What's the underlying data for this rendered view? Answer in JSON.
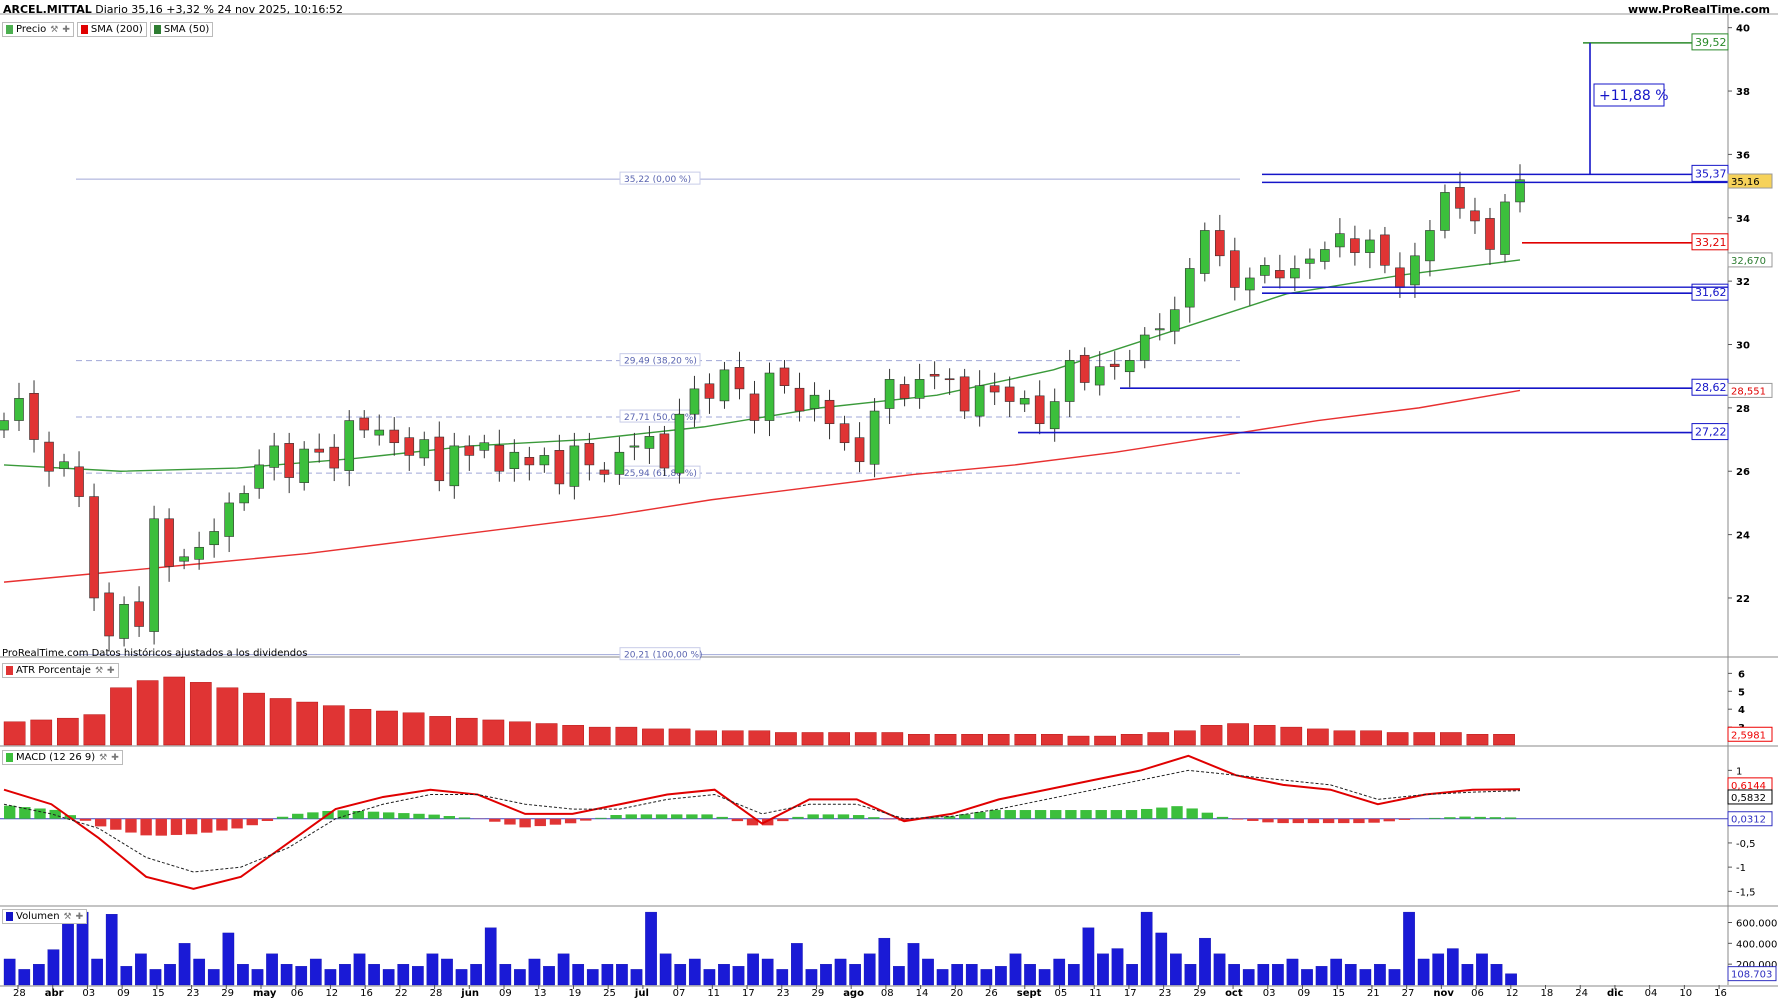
{
  "header": {
    "instrument": "ARCEL.MITTAL",
    "summary": "Diario 35,16 +3,32 % 24 nov 2025, 10:16:52",
    "site": "www.ProRealTime.com"
  },
  "legend": {
    "items": [
      {
        "label": "Precio",
        "color": "#4caf50"
      },
      {
        "label": "SMA (200)",
        "color": "#e00000"
      },
      {
        "label": "SMA (50)",
        "color": "#2e7d32"
      }
    ]
  },
  "footnote": "ProRealTime.com Datos históricos ajustados a los dividendos",
  "panels": {
    "atr": "ATR Porcentaje",
    "macd": "MACD (12 26 9)",
    "volume": "Volumen"
  },
  "colors": {
    "up": "#3cbf3c",
    "down": "#e03434",
    "sma200": "#e83030",
    "sma50": "#3a9a3a",
    "level": "#1515c8",
    "stop": "#e00000",
    "fib": "#a0a8d8"
  },
  "chart_data": [
    {
      "type": "candlestick",
      "title": "ARCEL.MITTAL Diario",
      "y_ticks": [
        22,
        24,
        26,
        28,
        30,
        32,
        34,
        36,
        38,
        40
      ],
      "ylim": [
        20.2,
        40.4
      ],
      "x_tick_labels": [
        "28",
        "abr",
        "03",
        "09",
        "15",
        "23",
        "29",
        "may",
        "06",
        "12",
        "16",
        "22",
        "28",
        "jun",
        "09",
        "13",
        "19",
        "25",
        "jul",
        "07",
        "11",
        "17",
        "23",
        "29",
        "ago",
        "08",
        "14",
        "20",
        "26",
        "sept",
        "05",
        "11",
        "17",
        "23",
        "29",
        "oct",
        "03",
        "09",
        "15",
        "21",
        "27",
        "nov",
        "06",
        "12",
        "18",
        "24",
        "dic",
        "04",
        "10",
        "16"
      ],
      "close_path": [
        27.6,
        28.3,
        27.0,
        26.0,
        26.3,
        25.2,
        22.0,
        20.8,
        21.8,
        21.1,
        24.5,
        23.0,
        23.3,
        23.6,
        24.1,
        25.0,
        25.3,
        26.2,
        26.8,
        25.8,
        26.7,
        26.6,
        26.1,
        27.6,
        27.3,
        27.3,
        26.9,
        26.5,
        27.0,
        25.7,
        26.8,
        26.5,
        26.9,
        26.0,
        26.6,
        26.2,
        26.5,
        25.6,
        26.8,
        26.2,
        25.9,
        26.6,
        26.8,
        27.1,
        26.1,
        27.8,
        28.6,
        28.3,
        29.2,
        28.6,
        27.6,
        29.1,
        28.7,
        27.9,
        28.4,
        27.5,
        26.9,
        26.3,
        27.9,
        28.9,
        28.3,
        28.9,
        29.0,
        28.9,
        27.9,
        28.7,
        28.5,
        28.2,
        28.3,
        27.5,
        28.2,
        29.5,
        28.8,
        29.3,
        29.3,
        29.5,
        30.3,
        30.5,
        31.1,
        32.4,
        33.6,
        32.8,
        31.8,
        32.1,
        32.5,
        32.1,
        32.4,
        32.7,
        33.0,
        33.5,
        32.9,
        33.3,
        32.5,
        31.8,
        32.8,
        33.6,
        34.8,
        34.3,
        33.9,
        33.0,
        34.5,
        35.2
      ],
      "sma200_path": [
        22.5,
        22.8,
        23.1,
        23.4,
        23.8,
        24.2,
        24.6,
        25.1,
        25.5,
        25.9,
        26.2,
        26.6,
        27.1,
        27.6,
        28.0,
        28.55
      ],
      "sma50_path": [
        26.2,
        26.0,
        26.1,
        26.4,
        26.8,
        27.0,
        27.4,
        28.0,
        28.4,
        29.2,
        30.4,
        31.6,
        32.2,
        32.67
      ],
      "fibonacci": [
        {
          "label": "35,22 (0,00 %)",
          "value": 35.22
        },
        {
          "label": "29,49 (38,20 %)",
          "value": 29.49
        },
        {
          "label": "27,71 (50,00 %)",
          "value": 27.71
        },
        {
          "label": "25,94 (61,80 %)",
          "value": 25.94
        },
        {
          "label": "20,21 (100,00 %)",
          "value": 20.21
        }
      ],
      "levels": [
        {
          "label": "39,52",
          "value": 39.52,
          "color": "#2a8a2a"
        },
        {
          "label": "35,37",
          "value": 35.37,
          "color": "#1515c8"
        },
        {
          "label": "33,21",
          "value": 33.21,
          "color": "#e00000"
        },
        {
          "label": "31,62",
          "value": 31.62,
          "color": "#1515c8"
        },
        {
          "label": "28,62",
          "value": 28.62,
          "color": "#1515c8"
        },
        {
          "label": "27,22",
          "value": 27.22,
          "color": "#1515c8"
        }
      ],
      "price_tags": [
        {
          "label": "35,16",
          "value": 35.16,
          "bg": "#f6d25a"
        },
        {
          "label": "32,670",
          "value": 32.67,
          "bg": "#ffffff",
          "fg": "#2e7d32"
        },
        {
          "label": "28,551",
          "value": 28.551,
          "bg": "#ffffff",
          "fg": "#e00000"
        }
      ],
      "projection_label": "+11,88 %",
      "last_close": 35.16,
      "change_pct": 3.32
    },
    {
      "type": "bar",
      "title": "ATR Porcentaje",
      "y_ticks": [
        3,
        4,
        5,
        6
      ],
      "last_value_label": "2,5981",
      "values": [
        3.3,
        3.4,
        3.5,
        3.7,
        5.2,
        5.6,
        5.8,
        5.5,
        5.2,
        4.9,
        4.6,
        4.4,
        4.2,
        4.0,
        3.9,
        3.8,
        3.6,
        3.5,
        3.4,
        3.3,
        3.2,
        3.1,
        3.0,
        3.0,
        2.9,
        2.9,
        2.8,
        2.8,
        2.8,
        2.7,
        2.7,
        2.7,
        2.7,
        2.7,
        2.6,
        2.6,
        2.6,
        2.6,
        2.6,
        2.6,
        2.5,
        2.5,
        2.6,
        2.7,
        2.8,
        3.1,
        3.2,
        3.1,
        3.0,
        2.9,
        2.8,
        2.8,
        2.7,
        2.7,
        2.7,
        2.6,
        2.6
      ]
    },
    {
      "type": "line",
      "title": "MACD (12 26 9)",
      "y_ticks": [
        -1.5,
        -1,
        -0.5,
        0,
        0.5,
        1
      ],
      "tick_labels": [
        "-1,5",
        "-1",
        "-0,5",
        "0",
        "0,5",
        "1"
      ],
      "series": [
        {
          "name": "MACD",
          "values": [
            0.6,
            0.3,
            -0.4,
            -1.2,
            -1.45,
            -1.2,
            -0.5,
            0.2,
            0.45,
            0.6,
            0.5,
            0.1,
            0.1,
            0.3,
            0.5,
            0.6,
            -0.1,
            0.4,
            0.4,
            -0.05,
            0.1,
            0.4,
            0.6,
            0.8,
            1.0,
            1.3,
            0.9,
            0.7,
            0.6,
            0.3,
            0.5,
            0.6,
            0.61
          ]
        },
        {
          "name": "Señal",
          "values": [
            0.3,
            0.1,
            -0.2,
            -0.8,
            -1.1,
            -1.0,
            -0.6,
            0.0,
            0.3,
            0.5,
            0.5,
            0.3,
            0.2,
            0.2,
            0.4,
            0.5,
            0.1,
            0.3,
            0.3,
            0.0,
            0.05,
            0.2,
            0.4,
            0.6,
            0.8,
            1.0,
            0.9,
            0.8,
            0.7,
            0.4,
            0.5,
            0.55,
            0.58
          ]
        }
      ],
      "last_values": [
        "0,6144",
        "0,5832",
        "0,0312"
      ]
    },
    {
      "type": "bar",
      "title": "Volumen",
      "y_ticks": [
        200000,
        400000,
        600000
      ],
      "tick_labels": [
        "200.000",
        "400.000",
        "600.000"
      ],
      "last_value_label": "108.703",
      "values": [
        250,
        150,
        200,
        340,
        600,
        700,
        250,
        680,
        180,
        300,
        150,
        200,
        400,
        250,
        150,
        500,
        200,
        150,
        300,
        200,
        180,
        250,
        150,
        200,
        300,
        200,
        150,
        200,
        180,
        300,
        250,
        150,
        200,
        550,
        200,
        150,
        250,
        180,
        300,
        200,
        150,
        200,
        200,
        150,
        700,
        300,
        200,
        250,
        150,
        200,
        180,
        300,
        250,
        150,
        400,
        150,
        200,
        250,
        200,
        300,
        450,
        180,
        400,
        250,
        150,
        200,
        200,
        150,
        180,
        300,
        200,
        150,
        250,
        200,
        550,
        300,
        350,
        200,
        700,
        500,
        300,
        200,
        450,
        300,
        200,
        150,
        200,
        200,
        250,
        150,
        180,
        250,
        200,
        150,
        200,
        150,
        700,
        250,
        300,
        350,
        200,
        300,
        200,
        109
      ]
    }
  ]
}
